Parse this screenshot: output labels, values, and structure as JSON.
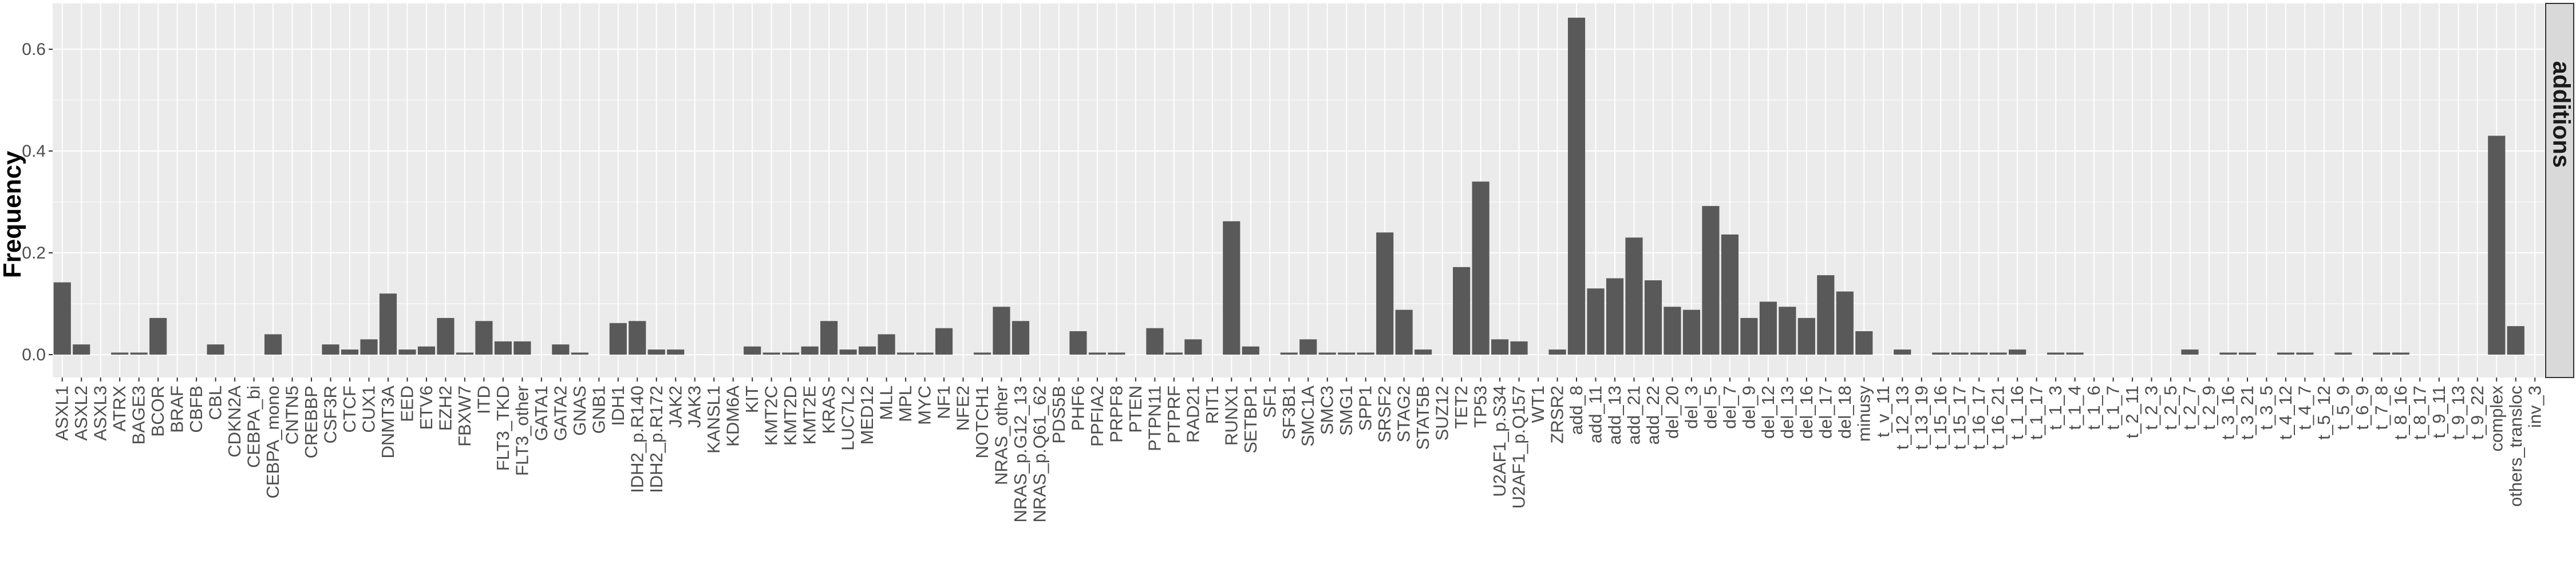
{
  "chart_data": {
    "type": "bar",
    "ylabel": "Frequency",
    "xlabel": "",
    "facet_label": "additions",
    "ylim": [
      -0.045,
      0.69
    ],
    "yticks": [
      0.0,
      0.2,
      0.4,
      0.6
    ],
    "ytick_labels": [
      "0.0",
      "0.2",
      "0.4",
      "0.6"
    ],
    "grid": true,
    "legend": "none",
    "colors": {
      "bar": "#595959",
      "panel": "#ebebeb",
      "grid": "#ffffff",
      "strip": "#d9d9d9"
    },
    "categories": [
      "ASXL1",
      "ASXL2",
      "ASXL3",
      "ATRX",
      "BAGE3",
      "BCOR",
      "BRAF",
      "CBFB",
      "CBL",
      "CDKN2A",
      "CEBPA_bi",
      "CEBPA_mono",
      "CNTN5",
      "CREBBP",
      "CSF3R",
      "CTCF",
      "CUX1",
      "DNMT3A",
      "EED",
      "ETV6",
      "EZH2",
      "FBXW7",
      "ITD",
      "FLT3_TKD",
      "FLT3_other",
      "GATA1",
      "GATA2",
      "GNAS",
      "GNB1",
      "IDH1",
      "IDH2_p.R140",
      "IDH2_p.R172",
      "JAK2",
      "JAK3",
      "KANSL1",
      "KDM6A",
      "KIT",
      "KMT2C",
      "KMT2D",
      "KMT2E",
      "KRAS",
      "LUC7L2",
      "MED12",
      "MLL",
      "MPL",
      "MYC",
      "NF1",
      "NFE2",
      "NOTCH1",
      "NRAS_other",
      "NRAS_p.G12_13",
      "NRAS_p.Q61_62",
      "PDS5B",
      "PHF6",
      "PPFIA2",
      "PRPF8",
      "PTEN",
      "PTPN11",
      "PTPRF",
      "RAD21",
      "RIT1",
      "RUNX1",
      "SETBP1",
      "SF1",
      "SF3B1",
      "SMC1A",
      "SMC3",
      "SMG1",
      "SPP1",
      "SRSF2",
      "STAG2",
      "STAT5B",
      "SUZ12",
      "TET2",
      "TP53",
      "U2AF1_p.S34",
      "U2AF1_p.Q157",
      "WT1",
      "ZRSR2",
      "add_8",
      "add_11",
      "add_13",
      "add_21",
      "add_22",
      "del_20",
      "del_3",
      "del_5",
      "del_7",
      "del_9",
      "del_12",
      "del_13",
      "del_16",
      "del_17",
      "del_18",
      "minusy",
      "t_v_11",
      "t_12_13",
      "t_13_19",
      "t_15_16",
      "t_15_17",
      "t_16_17",
      "t_16_21",
      "t_1_16",
      "t_1_17",
      "t_1_3",
      "t_1_4",
      "t_1_6",
      "t_1_7",
      "t_2_11",
      "t_2_3",
      "t_2_5",
      "t_2_7",
      "t_2_9",
      "t_3_16",
      "t_3_21",
      "t_3_5",
      "t_4_12",
      "t_4_7",
      "t_5_12",
      "t_5_9",
      "t_6_9",
      "t_7_8",
      "t_8_16",
      "t_8_17",
      "t_9_11",
      "t_9_13",
      "t_9_22",
      "complex",
      "others_transloc",
      "inv_3"
    ],
    "values": [
      0.142,
      0.02,
      0.0,
      0.004,
      0.004,
      0.072,
      0.0,
      0.0,
      0.02,
      0.0,
      0.0,
      0.04,
      0.0,
      0.0,
      0.02,
      0.01,
      0.03,
      0.12,
      0.01,
      0.016,
      0.072,
      0.004,
      0.066,
      0.026,
      0.026,
      0.0,
      0.02,
      0.004,
      0.0,
      0.062,
      0.066,
      0.01,
      0.01,
      0.0,
      0.0,
      0.0,
      0.016,
      0.004,
      0.004,
      0.016,
      0.066,
      0.01,
      0.016,
      0.04,
      0.004,
      0.004,
      0.052,
      0.0,
      0.004,
      0.094,
      0.066,
      0.0,
      0.0,
      0.046,
      0.004,
      0.004,
      0.0,
      0.052,
      0.004,
      0.03,
      0.0,
      0.262,
      0.016,
      0.0,
      0.004,
      0.03,
      0.004,
      0.004,
      0.004,
      0.24,
      0.088,
      0.01,
      0.0,
      0.172,
      0.34,
      0.03,
      0.026,
      0.0,
      0.01,
      0.662,
      0.13,
      0.15,
      0.23,
      0.146,
      0.094,
      0.088,
      0.292,
      0.236,
      0.072,
      0.104,
      0.094,
      0.072,
      0.156,
      0.124,
      0.046,
      0.0,
      0.01,
      0.0,
      0.004,
      0.004,
      0.004,
      0.004,
      0.01,
      0.0,
      0.004,
      0.004,
      0.0,
      0.0,
      0.0,
      0.0,
      0.0,
      0.01,
      0.0,
      0.004,
      0.004,
      0.0,
      0.004,
      0.004,
      0.0,
      0.004,
      0.0,
      0.004,
      0.004,
      0.0,
      0.0,
      0.0,
      0.0,
      0.43,
      0.056,
      0.0
    ]
  }
}
